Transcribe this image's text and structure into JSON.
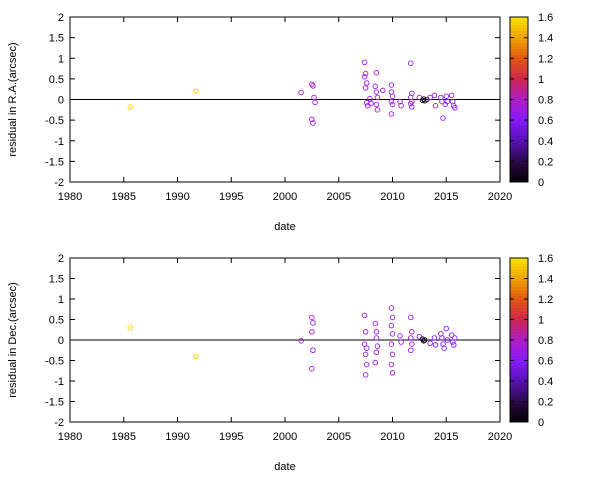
{
  "colorbar": {
    "ticks": [
      "0",
      "0.2",
      "0.4",
      "0.6",
      "0.8",
      "1",
      "1.2",
      "1.4",
      "1.6"
    ],
    "colormap": [
      "#000000",
      "#2a0a4a",
      "#5a12b8",
      "#8a1bff",
      "#b21ec8",
      "#d02850",
      "#e85a10",
      "#f4a800",
      "#ffe800"
    ]
  },
  "chart_data": [
    {
      "type": "scatter",
      "title": "",
      "xlabel": "date",
      "ylabel": "residual in R.A.(arcsec)",
      "xlim": [
        1980,
        2020
      ],
      "ylim": [
        -2,
        2
      ],
      "xticks": [
        "1980",
        "1985",
        "1990",
        "1995",
        "2000",
        "2005",
        "2010",
        "2015",
        "2020"
      ],
      "yticks": [
        "-2",
        "-1.5",
        "-1",
        "-0.5",
        "0",
        "0.5",
        "1",
        "1.5",
        "2"
      ],
      "zero_line": true,
      "marker": "open-circle",
      "color_scale_range": [
        0,
        1.6
      ],
      "points": [
        {
          "x": 1985.6,
          "y": -0.18,
          "c": 1.55
        },
        {
          "x": 1991.7,
          "y": 0.2,
          "c": 1.5
        },
        {
          "x": 2001.5,
          "y": 0.17,
          "c": 0.75
        },
        {
          "x": 2002.5,
          "y": 0.37,
          "c": 0.7
        },
        {
          "x": 2002.6,
          "y": 0.33,
          "c": 0.7
        },
        {
          "x": 2002.7,
          "y": 0.05,
          "c": 0.7
        },
        {
          "x": 2002.8,
          "y": -0.07,
          "c": 0.7
        },
        {
          "x": 2002.5,
          "y": -0.48,
          "c": 0.7
        },
        {
          "x": 2002.6,
          "y": -0.57,
          "c": 0.7
        },
        {
          "x": 2007.4,
          "y": 0.9,
          "c": 0.7
        },
        {
          "x": 2007.5,
          "y": 0.63,
          "c": 0.7
        },
        {
          "x": 2007.4,
          "y": 0.55,
          "c": 0.7
        },
        {
          "x": 2007.6,
          "y": 0.4,
          "c": 0.7
        },
        {
          "x": 2007.5,
          "y": 0.28,
          "c": 0.7
        },
        {
          "x": 2007.6,
          "y": -0.08,
          "c": 0.7
        },
        {
          "x": 2007.7,
          "y": -0.15,
          "c": 0.7
        },
        {
          "x": 2007.9,
          "y": 0.02,
          "c": 0.7
        },
        {
          "x": 2008.0,
          "y": -0.1,
          "c": 0.7
        },
        {
          "x": 2008.5,
          "y": 0.65,
          "c": 0.7
        },
        {
          "x": 2008.4,
          "y": 0.32,
          "c": 0.7
        },
        {
          "x": 2008.5,
          "y": 0.18,
          "c": 0.7
        },
        {
          "x": 2008.6,
          "y": 0.05,
          "c": 0.7
        },
        {
          "x": 2008.5,
          "y": -0.12,
          "c": 0.7
        },
        {
          "x": 2008.6,
          "y": -0.25,
          "c": 0.7
        },
        {
          "x": 2009.1,
          "y": 0.22,
          "c": 0.7
        },
        {
          "x": 2009.9,
          "y": 0.35,
          "c": 0.7
        },
        {
          "x": 2009.9,
          "y": 0.18,
          "c": 0.7
        },
        {
          "x": 2010.0,
          "y": 0.08,
          "c": 0.7
        },
        {
          "x": 2009.9,
          "y": -0.05,
          "c": 0.7
        },
        {
          "x": 2010.0,
          "y": -0.12,
          "c": 0.7
        },
        {
          "x": 2009.9,
          "y": -0.35,
          "c": 0.7
        },
        {
          "x": 2010.7,
          "y": -0.05,
          "c": 0.7
        },
        {
          "x": 2010.8,
          "y": -0.15,
          "c": 0.7
        },
        {
          "x": 2011.7,
          "y": 0.88,
          "c": 0.7
        },
        {
          "x": 2011.8,
          "y": 0.15,
          "c": 0.7
        },
        {
          "x": 2011.7,
          "y": 0.05,
          "c": 0.7
        },
        {
          "x": 2011.8,
          "y": -0.05,
          "c": 0.7
        },
        {
          "x": 2011.7,
          "y": -0.1,
          "c": 0.7
        },
        {
          "x": 2011.8,
          "y": -0.18,
          "c": 0.7
        },
        {
          "x": 2012.5,
          "y": 0.05,
          "c": 0.6
        },
        {
          "x": 2012.8,
          "y": -0.02,
          "c": 0.1
        },
        {
          "x": 2012.9,
          "y": 0.01,
          "c": 0.05
        },
        {
          "x": 2013.0,
          "y": -0.03,
          "c": 0.1
        },
        {
          "x": 2013.2,
          "y": 0.0,
          "c": 0.3
        },
        {
          "x": 2013.5,
          "y": 0.05,
          "c": 0.6
        },
        {
          "x": 2013.9,
          "y": 0.1,
          "c": 0.6
        },
        {
          "x": 2014.0,
          "y": -0.15,
          "c": 0.6
        },
        {
          "x": 2014.5,
          "y": 0.05,
          "c": 0.6
        },
        {
          "x": 2014.6,
          "y": -0.05,
          "c": 0.6
        },
        {
          "x": 2014.7,
          "y": -0.45,
          "c": 0.6
        },
        {
          "x": 2014.9,
          "y": -0.12,
          "c": 0.6
        },
        {
          "x": 2015.0,
          "y": 0.08,
          "c": 0.6
        },
        {
          "x": 2015.1,
          "y": -0.05,
          "c": 0.6
        },
        {
          "x": 2015.5,
          "y": 0.1,
          "c": 0.6
        },
        {
          "x": 2015.6,
          "y": -0.05,
          "c": 0.6
        },
        {
          "x": 2015.7,
          "y": -0.15,
          "c": 0.6
        },
        {
          "x": 2015.8,
          "y": -0.2,
          "c": 0.6
        }
      ]
    },
    {
      "type": "scatter",
      "title": "",
      "xlabel": "date",
      "ylabel": "residual in Dec.(arcsec)",
      "xlim": [
        1980,
        2020
      ],
      "ylim": [
        -2,
        2
      ],
      "xticks": [
        "1980",
        "1985",
        "1990",
        "1995",
        "2000",
        "2005",
        "2010",
        "2015",
        "2020"
      ],
      "yticks": [
        "-2",
        "-1.5",
        "-1",
        "-0.5",
        "0",
        "0.5",
        "1",
        "1.5",
        "2"
      ],
      "zero_line": true,
      "marker": "open-circle",
      "color_scale_range": [
        0,
        1.6
      ],
      "points": [
        {
          "x": 1985.6,
          "y": 0.3,
          "c": 1.55
        },
        {
          "x": 1991.7,
          "y": -0.4,
          "c": 1.5
        },
        {
          "x": 2001.5,
          "y": -0.02,
          "c": 0.75
        },
        {
          "x": 2002.5,
          "y": 0.55,
          "c": 0.7
        },
        {
          "x": 2002.6,
          "y": 0.42,
          "c": 0.7
        },
        {
          "x": 2002.5,
          "y": 0.2,
          "c": 0.7
        },
        {
          "x": 2002.6,
          "y": -0.25,
          "c": 0.7
        },
        {
          "x": 2002.5,
          "y": -0.7,
          "c": 0.7
        },
        {
          "x": 2007.4,
          "y": 0.6,
          "c": 0.7
        },
        {
          "x": 2007.5,
          "y": 0.2,
          "c": 0.7
        },
        {
          "x": 2007.4,
          "y": -0.1,
          "c": 0.7
        },
        {
          "x": 2007.6,
          "y": -0.2,
          "c": 0.7
        },
        {
          "x": 2007.5,
          "y": -0.35,
          "c": 0.7
        },
        {
          "x": 2007.6,
          "y": -0.6,
          "c": 0.7
        },
        {
          "x": 2007.5,
          "y": -0.85,
          "c": 0.7
        },
        {
          "x": 2008.4,
          "y": 0.4,
          "c": 0.7
        },
        {
          "x": 2008.5,
          "y": 0.2,
          "c": 0.7
        },
        {
          "x": 2008.5,
          "y": 0.05,
          "c": 0.7
        },
        {
          "x": 2008.6,
          "y": -0.15,
          "c": 0.7
        },
        {
          "x": 2008.5,
          "y": -0.3,
          "c": 0.7
        },
        {
          "x": 2008.4,
          "y": -0.55,
          "c": 0.7
        },
        {
          "x": 2009.9,
          "y": 0.78,
          "c": 0.7
        },
        {
          "x": 2010.0,
          "y": 0.55,
          "c": 0.7
        },
        {
          "x": 2009.9,
          "y": 0.35,
          "c": 0.7
        },
        {
          "x": 2010.0,
          "y": 0.15,
          "c": 0.7
        },
        {
          "x": 2009.9,
          "y": -0.1,
          "c": 0.7
        },
        {
          "x": 2010.0,
          "y": -0.35,
          "c": 0.7
        },
        {
          "x": 2009.9,
          "y": -0.6,
          "c": 0.7
        },
        {
          "x": 2010.0,
          "y": -0.8,
          "c": 0.7
        },
        {
          "x": 2010.7,
          "y": 0.1,
          "c": 0.7
        },
        {
          "x": 2010.8,
          "y": -0.05,
          "c": 0.7
        },
        {
          "x": 2011.7,
          "y": 0.55,
          "c": 0.7
        },
        {
          "x": 2011.8,
          "y": 0.2,
          "c": 0.7
        },
        {
          "x": 2011.7,
          "y": 0.05,
          "c": 0.7
        },
        {
          "x": 2011.8,
          "y": -0.1,
          "c": 0.7
        },
        {
          "x": 2011.7,
          "y": -0.25,
          "c": 0.7
        },
        {
          "x": 2012.5,
          "y": 0.08,
          "c": 0.6
        },
        {
          "x": 2012.8,
          "y": 0.02,
          "c": 0.1
        },
        {
          "x": 2012.9,
          "y": -0.02,
          "c": 0.05
        },
        {
          "x": 2013.0,
          "y": 0.0,
          "c": 0.1
        },
        {
          "x": 2013.5,
          "y": -0.08,
          "c": 0.6
        },
        {
          "x": 2013.9,
          "y": 0.05,
          "c": 0.6
        },
        {
          "x": 2014.0,
          "y": -0.12,
          "c": 0.6
        },
        {
          "x": 2014.5,
          "y": 0.15,
          "c": 0.6
        },
        {
          "x": 2014.6,
          "y": 0.05,
          "c": 0.6
        },
        {
          "x": 2014.7,
          "y": -0.1,
          "c": 0.6
        },
        {
          "x": 2014.8,
          "y": -0.2,
          "c": 0.6
        },
        {
          "x": 2015.0,
          "y": 0.28,
          "c": 0.6
        },
        {
          "x": 2015.1,
          "y": 0.0,
          "c": 0.6
        },
        {
          "x": 2015.5,
          "y": 0.12,
          "c": 0.6
        },
        {
          "x": 2015.6,
          "y": -0.05,
          "c": 0.6
        },
        {
          "x": 2015.7,
          "y": -0.12,
          "c": 0.6
        },
        {
          "x": 2015.8,
          "y": 0.05,
          "c": 0.6
        }
      ]
    }
  ]
}
